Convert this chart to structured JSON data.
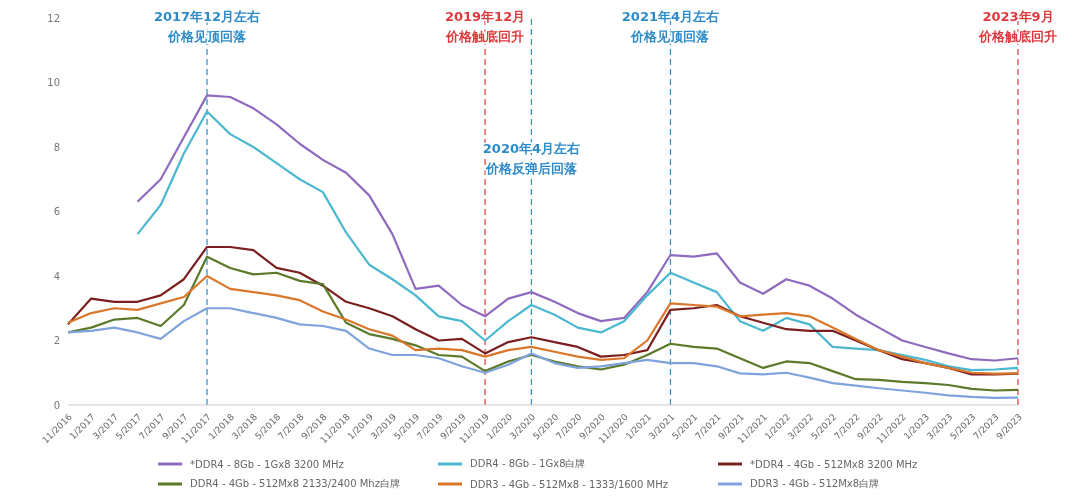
{
  "chart_data": {
    "type": "line",
    "categories": [
      "11/2016",
      "1/2017",
      "3/2017",
      "5/2017",
      "7/2017",
      "9/2017",
      "11/2017",
      "1/2018",
      "3/2018",
      "5/2018",
      "7/2018",
      "9/2018",
      "11/2018",
      "1/2019",
      "3/2019",
      "5/2019",
      "7/2019",
      "9/2019",
      "11/2019",
      "1/2020",
      "3/2020",
      "5/2020",
      "7/2020",
      "9/2020",
      "11/2020",
      "1/2021",
      "3/2021",
      "5/2021",
      "7/2021",
      "9/2021",
      "11/2021",
      "1/2022",
      "3/2022",
      "5/2022",
      "7/2022",
      "9/2022",
      "11/2022",
      "1/2023",
      "3/2023",
      "5/2023",
      "7/2023",
      "9/2023"
    ],
    "series": [
      {
        "name": "*DDR4 - 8Gb - 1Gx8 3200 MHz",
        "color": "#8e6bbf",
        "values": [
          null,
          null,
          null,
          6.3,
          7.0,
          8.3,
          9.6,
          9.55,
          9.2,
          8.7,
          8.1,
          7.6,
          7.2,
          6.5,
          5.3,
          3.6,
          3.7,
          3.1,
          2.75,
          3.3,
          3.5,
          3.2,
          2.85,
          2.6,
          2.7,
          3.5,
          4.65,
          4.6,
          4.7,
          3.8,
          3.45,
          3.9,
          3.7,
          3.3,
          2.8,
          2.4,
          2.0,
          1.8,
          1.6,
          1.42,
          1.38,
          1.45
        ]
      },
      {
        "name": "DDR4 - 8Gb - 1Gx8白牌",
        "color": "#4bb8d0",
        "values": [
          null,
          null,
          null,
          5.3,
          6.2,
          7.8,
          9.1,
          8.4,
          8.0,
          7.5,
          7.0,
          6.6,
          5.35,
          4.35,
          3.9,
          3.4,
          2.75,
          2.6,
          2.0,
          2.6,
          3.1,
          2.8,
          2.4,
          2.25,
          2.6,
          3.4,
          4.1,
          3.8,
          3.5,
          2.6,
          2.3,
          2.7,
          2.5,
          1.8,
          1.75,
          1.7,
          1.55,
          1.4,
          1.2,
          1.08,
          1.1,
          1.15
        ]
      },
      {
        "name": "*DDR4 - 4Gb - 512Mx8 3200 MHz",
        "color": "#7b1e1e",
        "values": [
          2.5,
          3.3,
          3.2,
          3.2,
          3.4,
          3.9,
          4.9,
          4.9,
          4.8,
          4.25,
          4.1,
          3.7,
          3.2,
          3.0,
          2.75,
          2.35,
          2.0,
          2.05,
          1.6,
          1.95,
          2.1,
          1.95,
          1.8,
          1.5,
          1.55,
          1.7,
          2.95,
          3.0,
          3.1,
          2.75,
          2.55,
          2.35,
          2.3,
          2.3,
          2.0,
          1.7,
          1.42,
          1.3,
          1.15,
          0.95,
          0.95,
          0.97
        ]
      },
      {
        "name": "DDR4 - 4Gb - 512Mx8 2133/2400 Mhz白牌",
        "color": "#5a7a2a",
        "values": [
          2.25,
          2.4,
          2.65,
          2.7,
          2.45,
          3.1,
          4.6,
          4.25,
          4.05,
          4.1,
          3.85,
          3.75,
          2.55,
          2.2,
          2.05,
          1.85,
          1.55,
          1.5,
          1.05,
          1.35,
          1.55,
          1.35,
          1.2,
          1.1,
          1.25,
          1.55,
          1.9,
          1.8,
          1.75,
          1.45,
          1.15,
          1.35,
          1.3,
          1.05,
          0.8,
          0.78,
          0.72,
          0.68,
          0.62,
          0.5,
          0.45,
          0.47
        ]
      },
      {
        "name": "DDR3 - 4Gb - 512Mx8 - 1333/1600 MHz",
        "color": "#d9772b",
        "values": [
          2.55,
          2.85,
          3.0,
          2.95,
          3.15,
          3.35,
          4.0,
          3.6,
          3.5,
          3.4,
          3.25,
          2.9,
          2.65,
          2.35,
          2.15,
          1.7,
          1.75,
          1.7,
          1.5,
          1.7,
          1.8,
          1.65,
          1.5,
          1.4,
          1.45,
          2.0,
          3.15,
          3.1,
          3.05,
          2.75,
          2.8,
          2.85,
          2.75,
          2.4,
          2.05,
          1.7,
          1.5,
          1.3,
          1.15,
          1.0,
          0.97,
          0.98
        ]
      },
      {
        "name": "DDR3 - 4Gb - 512Mx8白牌",
        "color": "#7fa3dc",
        "values": [
          2.25,
          2.3,
          2.4,
          2.25,
          2.05,
          2.6,
          3.0,
          3.0,
          2.85,
          2.7,
          2.5,
          2.45,
          2.3,
          1.75,
          1.55,
          1.55,
          1.45,
          1.2,
          1.0,
          1.25,
          1.6,
          1.3,
          1.15,
          1.2,
          1.3,
          1.4,
          1.3,
          1.3,
          1.2,
          0.98,
          0.95,
          1.0,
          0.85,
          0.68,
          0.6,
          0.52,
          0.45,
          0.38,
          0.3,
          0.25,
          0.22,
          0.23
        ]
      }
    ],
    "ylim": [
      0,
      12
    ],
    "yticks": [
      0,
      2,
      4,
      6,
      8,
      10,
      12
    ],
    "grid": false,
    "legend": "bottom",
    "marker": "none",
    "line_style": "solid",
    "ref_lines": [
      {
        "axis": "x",
        "value": "11/2017",
        "label": "2017年12月左右",
        "color": "#2e8bc9",
        "line_style": "dashed"
      },
      {
        "axis": "x",
        "value": "11/2019",
        "label": "2019年12月",
        "color": "#e0393e",
        "line_style": "dashed"
      },
      {
        "axis": "x",
        "value": "3/2020",
        "label": "2020年4月左右",
        "color": "#2e8bc9",
        "line_style": "dashed"
      },
      {
        "axis": "x",
        "value": "3/2021",
        "label": "2021年4月左右",
        "color": "#2e8bc9",
        "line_style": "dashed"
      },
      {
        "axis": "x",
        "value": "9/2023",
        "label": "2023年9月",
        "color": "#e0393e",
        "line_style": "dashed"
      }
    ],
    "annotations": [
      {
        "text": "价格见顶回落",
        "x": "11/2017",
        "y": 11.3
      },
      {
        "text": "价格触底回升",
        "x": "11/2019",
        "y": 11.3
      },
      {
        "text": "价格反弹后回落",
        "x": "3/2020",
        "y": 7.2
      },
      {
        "text": "价格见顶回落",
        "x": "3/2021",
        "y": 11.3
      },
      {
        "text": "价格触底回升",
        "x": "9/2023",
        "y": 11.3
      }
    ]
  }
}
